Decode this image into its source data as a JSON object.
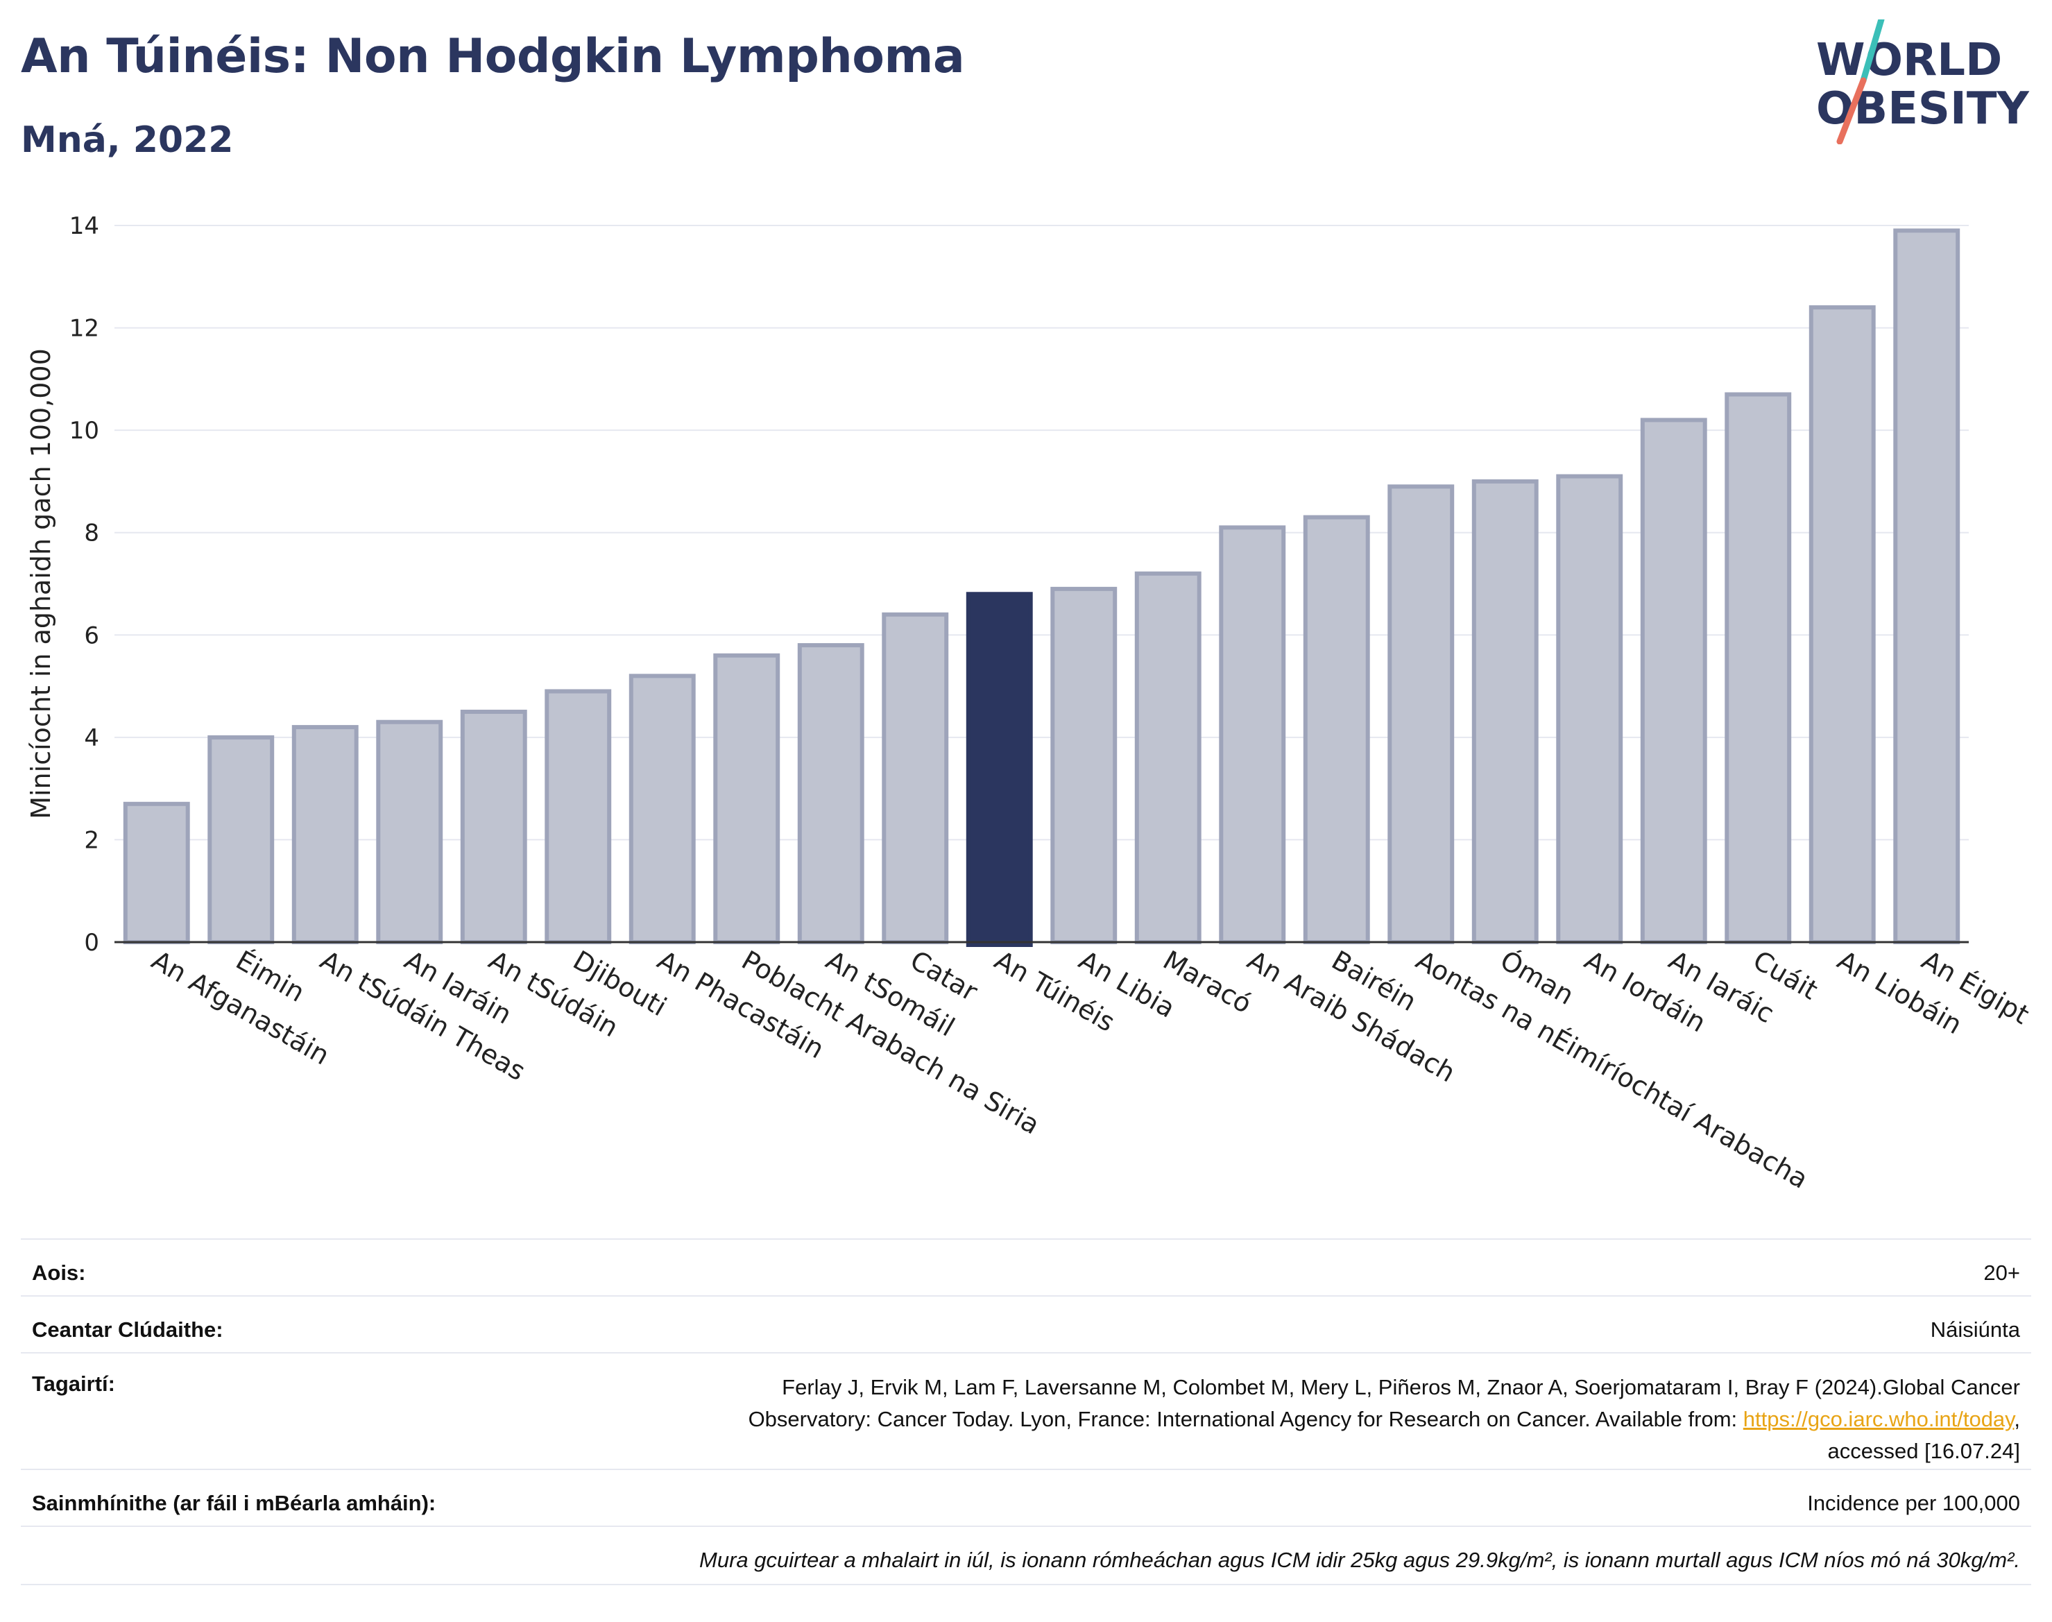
{
  "header": {
    "title": "An Túinéis: Non Hodgkin Lymphoma",
    "subtitle": "Mná, 2022"
  },
  "logo": {
    "line1": "WORLD",
    "line2": "OBESITY",
    "colors": {
      "text": "#2b365f",
      "slash_top": "#3bbfb8",
      "slash_bottom": "#e8705d"
    }
  },
  "chart_data": {
    "type": "bar",
    "ylabel": "Minicíocht in aghaidh gach 100,000",
    "ylim": [
      0,
      14
    ],
    "yticks": [
      0,
      2,
      4,
      6,
      8,
      10,
      12,
      14
    ],
    "grid": true,
    "highlight": "An Túinéis",
    "colors": {
      "bar": "#bfc3d0",
      "bar_border": "#9ea4ba",
      "highlight": "#2b365f",
      "grid": "#e6e8f0",
      "axis": "#333333"
    },
    "categories": [
      "An Afganastáin",
      "Éimin",
      "An tSúdáin Theas",
      "An Iaráin",
      "An tSúdáin",
      "Djibouti",
      "An Phacastáin",
      "Poblacht Arabach na Siria",
      "An tSomáil",
      "Catar",
      "An Túinéis",
      "An Libia",
      "Maracó",
      "An Araib Shádach",
      "Bairéin",
      "Aontas na nÉimíríochtaí Arabacha",
      "Óman",
      "An Iordáin",
      "An Iaráic",
      "Cuáit",
      "An Liobáin",
      "An Éigipt"
    ],
    "values": [
      2.7,
      4.0,
      4.2,
      4.3,
      4.5,
      4.9,
      5.2,
      5.6,
      5.8,
      6.4,
      6.8,
      6.9,
      7.2,
      8.1,
      8.3,
      8.9,
      9.0,
      9.1,
      10.2,
      10.7,
      12.4,
      13.9
    ]
  },
  "meta": {
    "age_label": "Aois:",
    "age_value": "20+",
    "area_label": "Ceantar Clúdaithe:",
    "area_value": "Náisiúnta",
    "refs_label": "Tagairtí:",
    "refs_line1": "Ferlay J, Ervik M, Lam F, Laversanne M, Colombet M, Mery L, Piñeros M, Znaor A, Soerjomataram I, Bray F (2024).Global Cancer",
    "refs_line2_pre": "Observatory: Cancer Today. Lyon, France: International Agency for Research on Cancer. Available from: ",
    "refs_link": "https://gco.iarc.who.int/today",
    "refs_line2_post": ",",
    "refs_line3": "accessed [16.07.24]",
    "defs_label": "Sainmhínithe (ar fáil i mBéarla amháin):",
    "defs_value": "Incidence per 100,000",
    "note": "Mura gcuirtear a mhalairt in iúl, is ionann rómheáchan agus ICM idir 25kg agus 29.9kg/m², is ionann murtall agus ICM níos mó ná 30kg/m²."
  }
}
